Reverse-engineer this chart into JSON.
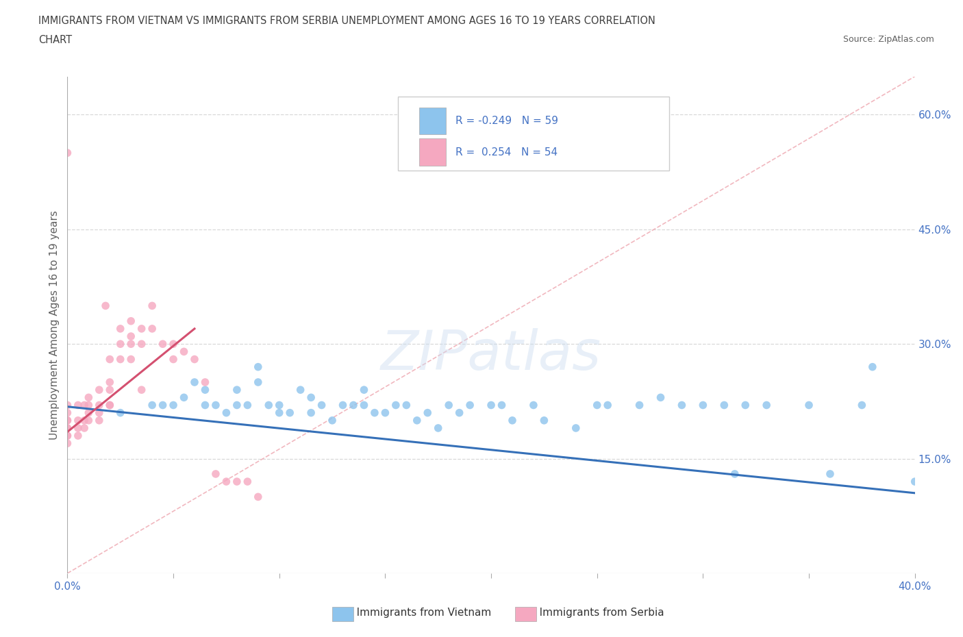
{
  "title_line1": "IMMIGRANTS FROM VIETNAM VS IMMIGRANTS FROM SERBIA UNEMPLOYMENT AMONG AGES 16 TO 19 YEARS CORRELATION",
  "title_line2": "CHART",
  "source": "Source: ZipAtlas.com",
  "ylabel": "Unemployment Among Ages 16 to 19 years",
  "xlim": [
    0.0,
    0.4
  ],
  "ylim": [
    0.0,
    0.65
  ],
  "xticks": [
    0.0,
    0.05,
    0.1,
    0.15,
    0.2,
    0.25,
    0.3,
    0.35,
    0.4
  ],
  "xticklabels": [
    "0.0%",
    "",
    "",
    "",
    "",
    "",
    "",
    "",
    "40.0%"
  ],
  "yticks_right": [
    0.0,
    0.15,
    0.3,
    0.45,
    0.6
  ],
  "yticklabels_right": [
    "",
    "15.0%",
    "30.0%",
    "45.0%",
    "60.0%"
  ],
  "vietnam_R": -0.249,
  "vietnam_N": 59,
  "serbia_R": 0.254,
  "serbia_N": 54,
  "vietnam_color": "#8dc4ed",
  "serbia_color": "#f5a8c0",
  "vietnam_line_color": "#3570b8",
  "serbia_line_color": "#d45070",
  "diagonal_color": "#f0b0b8",
  "watermark": "ZIPatlas",
  "legend_vietnam": "Immigrants from Vietnam",
  "legend_serbia": "Immigrants from Serbia",
  "vietnam_x": [
    0.025,
    0.04,
    0.045,
    0.05,
    0.055,
    0.06,
    0.065,
    0.065,
    0.07,
    0.075,
    0.08,
    0.08,
    0.085,
    0.09,
    0.09,
    0.095,
    0.1,
    0.1,
    0.105,
    0.11,
    0.115,
    0.115,
    0.12,
    0.125,
    0.13,
    0.135,
    0.14,
    0.14,
    0.145,
    0.15,
    0.155,
    0.16,
    0.165,
    0.17,
    0.175,
    0.18,
    0.185,
    0.19,
    0.2,
    0.205,
    0.21,
    0.22,
    0.225,
    0.24,
    0.25,
    0.255,
    0.27,
    0.28,
    0.29,
    0.3,
    0.31,
    0.315,
    0.32,
    0.33,
    0.35,
    0.36,
    0.375,
    0.38,
    0.4
  ],
  "vietnam_y": [
    0.21,
    0.22,
    0.22,
    0.22,
    0.23,
    0.25,
    0.24,
    0.22,
    0.22,
    0.21,
    0.22,
    0.24,
    0.22,
    0.25,
    0.27,
    0.22,
    0.22,
    0.21,
    0.21,
    0.24,
    0.23,
    0.21,
    0.22,
    0.2,
    0.22,
    0.22,
    0.24,
    0.22,
    0.21,
    0.21,
    0.22,
    0.22,
    0.2,
    0.21,
    0.19,
    0.22,
    0.21,
    0.22,
    0.22,
    0.22,
    0.2,
    0.22,
    0.2,
    0.19,
    0.22,
    0.22,
    0.22,
    0.23,
    0.22,
    0.22,
    0.22,
    0.13,
    0.22,
    0.22,
    0.22,
    0.13,
    0.22,
    0.27,
    0.12
  ],
  "serbia_x": [
    0.0,
    0.0,
    0.0,
    0.0,
    0.0,
    0.0,
    0.0,
    0.0,
    0.0,
    0.0,
    0.005,
    0.005,
    0.005,
    0.005,
    0.008,
    0.008,
    0.008,
    0.01,
    0.01,
    0.01,
    0.01,
    0.015,
    0.015,
    0.015,
    0.015,
    0.018,
    0.02,
    0.02,
    0.02,
    0.02,
    0.02,
    0.025,
    0.025,
    0.025,
    0.03,
    0.03,
    0.03,
    0.03,
    0.035,
    0.035,
    0.035,
    0.04,
    0.04,
    0.045,
    0.05,
    0.05,
    0.055,
    0.06,
    0.065,
    0.07,
    0.075,
    0.08,
    0.085,
    0.09
  ],
  "serbia_y": [
    0.18,
    0.19,
    0.2,
    0.21,
    0.22,
    0.2,
    0.18,
    0.19,
    0.17,
    0.55,
    0.18,
    0.19,
    0.2,
    0.22,
    0.19,
    0.2,
    0.22,
    0.2,
    0.21,
    0.23,
    0.22,
    0.22,
    0.21,
    0.24,
    0.2,
    0.35,
    0.22,
    0.25,
    0.28,
    0.24,
    0.22,
    0.28,
    0.3,
    0.32,
    0.3,
    0.28,
    0.31,
    0.33,
    0.3,
    0.32,
    0.24,
    0.32,
    0.35,
    0.3,
    0.3,
    0.28,
    0.29,
    0.28,
    0.25,
    0.13,
    0.12,
    0.12,
    0.12,
    0.1
  ],
  "background_color": "#ffffff",
  "grid_color": "#d8d8d8",
  "title_color": "#404040",
  "axis_label_color": "#606060",
  "tick_color": "#4472c4"
}
